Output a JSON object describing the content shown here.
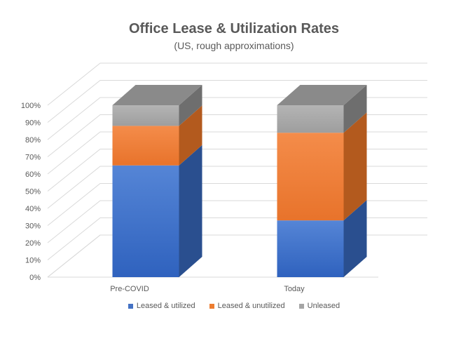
{
  "chart_data": {
    "type": "bar",
    "stacked": true,
    "three_d": true,
    "title": "Office Lease & Utilization Rates",
    "subtitle": "(US, rough approximations)",
    "xlabel": "",
    "ylabel": "",
    "ylim": [
      0,
      1
    ],
    "y_ticks": [
      "0%",
      "10%",
      "20%",
      "30%",
      "40%",
      "50%",
      "60%",
      "70%",
      "80%",
      "90%",
      "100%"
    ],
    "categories": [
      "Pre-COVID",
      "Today"
    ],
    "series": [
      {
        "name": "Leased & utilized",
        "values": [
          0.65,
          0.33
        ],
        "color": "#4472C4"
      },
      {
        "name": "Leased & unutilized",
        "values": [
          0.23,
          0.51
        ],
        "color": "#ED7D31"
      },
      {
        "name": "Unleased",
        "values": [
          0.12,
          0.16
        ],
        "color": "#A5A5A5"
      }
    ],
    "grid": true,
    "legend_position": "bottom"
  }
}
